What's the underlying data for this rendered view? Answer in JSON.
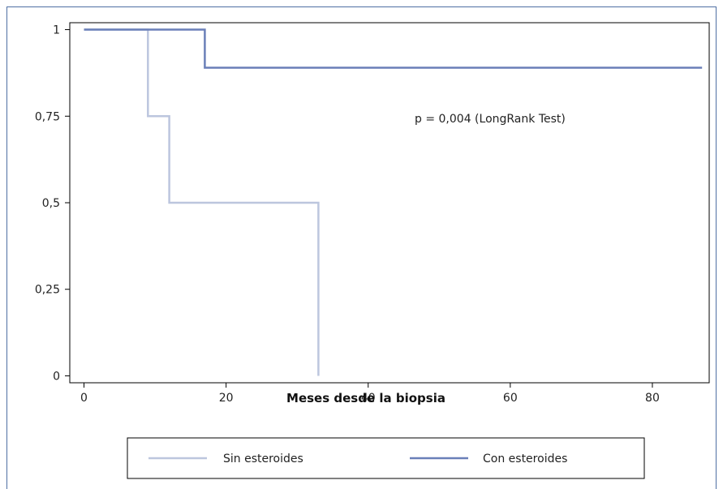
{
  "chart_data": {
    "type": "line",
    "chart_kind": "kaplan-meier step",
    "xlabel": "Meses desde la biopsia",
    "ylabel": "",
    "xlim": [
      -2,
      88
    ],
    "ylim": [
      -0.02,
      1.02
    ],
    "x_ticks": [
      0,
      20,
      40,
      60,
      80
    ],
    "x_tick_labels": [
      "0",
      "20",
      "40",
      "60",
      "80"
    ],
    "y_ticks": [
      0,
      0.25,
      0.5,
      0.75,
      1
    ],
    "y_tick_labels": [
      "0",
      "0,25",
      "0,5",
      "0,75",
      "1"
    ],
    "grid": false,
    "legend_position": "bottom",
    "annotation": "p = 0,004 (LongRank Test)",
    "series": [
      {
        "name": "Sin esteroides",
        "color": "#bcc6de",
        "x": [
          0,
          9,
          9,
          12,
          12,
          33,
          33
        ],
        "y": [
          1,
          1,
          0.75,
          0.75,
          0.5,
          0.5,
          0
        ]
      },
      {
        "name": "Con esteroides",
        "color": "#6a7fb8",
        "x": [
          0,
          17,
          17,
          87
        ],
        "y": [
          1,
          1,
          0.89,
          0.89
        ]
      }
    ]
  }
}
